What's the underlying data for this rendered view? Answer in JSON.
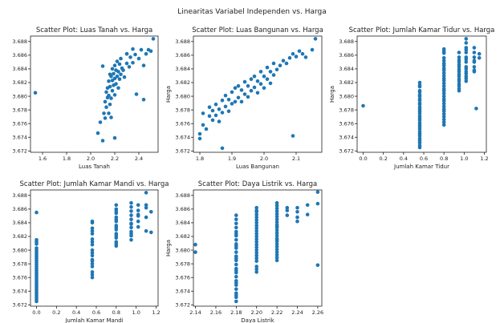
{
  "figure": {
    "suptitle": "Linearitas Variabel Independen vs. Harga",
    "marker_color": "#1f77b4"
  },
  "chart_data": [
    {
      "type": "scatter",
      "title": "Scatter Plot: Luas Tanah vs. Harga",
      "xlabel": "Luas Tanah",
      "ylabel": "",
      "xlim": [
        1.5,
        2.56
      ],
      "ylim": [
        3.6718,
        3.6888
      ],
      "xticks": [
        1.6,
        1.8,
        2.0,
        2.2,
        2.4
      ],
      "xtick_labels": [
        "1.6",
        "1.8",
        "2.0",
        "2.2",
        "2.4"
      ],
      "yticks": [
        3.672,
        3.674,
        3.676,
        3.678,
        3.68,
        3.682,
        3.684,
        3.686,
        3.688
      ],
      "ytick_labels": [
        "3.672",
        "3.674",
        "3.676",
        "3.678",
        "3.680",
        "3.682",
        "3.684",
        "3.686",
        "3.688"
      ],
      "x": [
        1.54,
        2.06,
        2.08,
        2.1,
        2.11,
        2.12,
        2.12,
        2.13,
        2.13,
        2.14,
        2.14,
        2.15,
        2.15,
        2.15,
        2.16,
        2.16,
        2.16,
        2.17,
        2.17,
        2.18,
        2.18,
        2.18,
        2.19,
        2.19,
        2.2,
        2.2,
        2.2,
        2.21,
        2.21,
        2.22,
        2.22,
        2.23,
        2.23,
        2.24,
        2.24,
        2.25,
        2.25,
        2.26,
        2.27,
        2.28,
        2.3,
        2.3,
        2.32,
        2.33,
        2.35,
        2.37,
        2.38,
        2.4,
        2.42,
        2.44,
        2.46,
        2.48,
        2.5,
        2.52,
        2.2,
        2.3,
        2.44,
        2.17,
        2.1,
        2.35
      ],
      "y": [
        3.6805,
        3.6746,
        3.6762,
        3.6735,
        3.6775,
        3.6792,
        3.6768,
        3.6806,
        3.6784,
        3.6798,
        3.6812,
        3.6775,
        3.6801,
        3.6822,
        3.6788,
        3.6814,
        3.6832,
        3.6797,
        3.6829,
        3.6808,
        3.6823,
        3.684,
        3.6816,
        3.6833,
        3.6802,
        3.6826,
        3.6845,
        3.6818,
        3.6838,
        3.6829,
        3.6851,
        3.6812,
        3.6836,
        3.6825,
        3.6847,
        3.6832,
        3.6855,
        3.6841,
        3.6838,
        3.6828,
        3.6848,
        3.6862,
        3.6843,
        3.6857,
        3.6849,
        3.6861,
        3.6803,
        3.6855,
        3.6868,
        3.6845,
        3.6862,
        3.6868,
        3.6866,
        3.6884,
        3.6739,
        3.6862,
        3.6795,
        3.6769,
        3.6844,
        3.6869
      ]
    },
    {
      "type": "scatter",
      "title": "Scatter Plot: Luas Bangunan vs. Harga",
      "xlabel": "Luas Bangunan",
      "ylabel": "Harga",
      "xlim": [
        1.78,
        2.18
      ],
      "ylim": [
        3.6718,
        3.6888
      ],
      "xticks": [
        1.8,
        1.9,
        2.0,
        2.1
      ],
      "xtick_labels": [
        "1.8",
        "1.9",
        "2.0",
        "2.1"
      ],
      "yticks": [
        3.672,
        3.674,
        3.676,
        3.678,
        3.68,
        3.682,
        3.684,
        3.686,
        3.688
      ],
      "ytick_labels": [
        "3.672",
        "3.674",
        "3.676",
        "3.678",
        "3.680",
        "3.682",
        "3.684",
        "3.686",
        "3.688"
      ],
      "x": [
        1.8,
        1.81,
        1.81,
        1.82,
        1.83,
        1.83,
        1.84,
        1.84,
        1.85,
        1.85,
        1.86,
        1.86,
        1.87,
        1.87,
        1.88,
        1.88,
        1.89,
        1.89,
        1.9,
        1.9,
        1.91,
        1.91,
        1.92,
        1.92,
        1.93,
        1.93,
        1.94,
        1.94,
        1.95,
        1.95,
        1.96,
        1.96,
        1.97,
        1.97,
        1.98,
        1.98,
        1.99,
        1.99,
        2.0,
        2.0,
        2.01,
        2.01,
        2.02,
        2.02,
        2.03,
        2.03,
        2.04,
        2.05,
        2.06,
        2.07,
        2.08,
        2.09,
        2.1,
        2.11,
        2.12,
        2.13,
        1.87,
        2.09,
        1.8,
        2.16,
        2.15
      ],
      "y": [
        3.6745,
        3.6758,
        3.6775,
        3.6752,
        3.6771,
        3.6784,
        3.6765,
        3.6779,
        3.6772,
        3.6788,
        3.6763,
        3.6781,
        3.6776,
        3.6794,
        3.6785,
        3.6801,
        3.6778,
        3.6795,
        3.6789,
        3.6806,
        3.6792,
        3.6812,
        3.6798,
        3.6815,
        3.6792,
        3.6809,
        3.6803,
        3.6821,
        3.6799,
        3.6815,
        3.6808,
        3.6825,
        3.6813,
        3.6829,
        3.6805,
        3.6822,
        3.6818,
        3.6836,
        3.6812,
        3.6829,
        3.6825,
        3.6842,
        3.6819,
        3.6836,
        3.6831,
        3.6848,
        3.6839,
        3.6845,
        3.6852,
        3.6848,
        3.6856,
        3.6862,
        3.6858,
        3.6866,
        3.6862,
        3.6857,
        3.6724,
        3.6742,
        3.6738,
        3.6884,
        3.6868
      ]
    },
    {
      "type": "scatter",
      "title": "Scatter Plot: Jumlah Kamar Tidur vs. Harga",
      "xlabel": "Jumlah Kamar Tidur",
      "ylabel": "Harga",
      "xlim": [
        -0.06,
        1.22
      ],
      "ylim": [
        3.6718,
        3.6888
      ],
      "xticks": [
        0.0,
        0.2,
        0.4,
        0.6,
        0.8,
        1.0,
        1.2
      ],
      "xtick_labels": [
        "0.0",
        "0.2",
        "0.4",
        "0.6",
        "0.8",
        "1.0",
        "1.2"
      ],
      "yticks": [
        3.672,
        3.674,
        3.676,
        3.678,
        3.68,
        3.682,
        3.684,
        3.686,
        3.688
      ],
      "ytick_labels": [
        "3.672",
        "3.674",
        "3.676",
        "3.678",
        "3.680",
        "3.682",
        "3.684",
        "3.686",
        "3.688"
      ],
      "x": [
        0.0,
        0.56,
        0.56,
        0.56,
        0.56,
        0.56,
        0.56,
        0.56,
        0.56,
        0.56,
        0.56,
        0.56,
        0.56,
        0.56,
        0.56,
        0.56,
        0.56,
        0.56,
        0.56,
        0.56,
        0.56,
        0.56,
        0.56,
        0.56,
        0.56,
        0.56,
        0.56,
        0.56,
        0.56,
        0.56,
        0.56,
        0.8,
        0.8,
        0.8,
        0.8,
        0.8,
        0.8,
        0.8,
        0.8,
        0.8,
        0.8,
        0.8,
        0.8,
        0.8,
        0.8,
        0.8,
        0.8,
        0.8,
        0.8,
        0.8,
        0.8,
        0.8,
        0.8,
        0.8,
        0.8,
        0.8,
        0.8,
        0.8,
        0.8,
        0.8,
        0.8,
        0.95,
        0.95,
        0.95,
        0.95,
        0.95,
        0.95,
        0.95,
        0.95,
        0.95,
        0.95,
        0.95,
        0.95,
        0.95,
        0.95,
        0.95,
        0.95,
        1.02,
        1.02,
        1.02,
        1.02,
        1.02,
        1.02,
        1.02,
        1.02,
        1.02,
        1.02,
        1.02,
        1.02,
        1.02,
        1.02,
        1.02,
        1.1,
        1.1,
        1.1,
        1.1,
        1.1,
        1.1,
        1.1,
        1.1,
        1.12,
        1.15,
        1.15
      ],
      "y": [
        3.6786,
        3.6725,
        3.6732,
        3.6738,
        3.6745,
        3.6752,
        3.6758,
        3.6765,
        3.6771,
        3.6778,
        3.6784,
        3.679,
        3.6796,
        3.6802,
        3.6808,
        3.6814,
        3.682,
        3.6728,
        3.6742,
        3.6755,
        3.6768,
        3.6781,
        3.6794,
        3.6806,
        3.6816,
        3.6735,
        3.6748,
        3.6761,
        3.6775,
        3.6788,
        3.68,
        3.6758,
        3.6766,
        3.6774,
        3.6781,
        3.6789,
        3.6796,
        3.6804,
        3.6811,
        3.6819,
        3.6826,
        3.6834,
        3.6841,
        3.6848,
        3.6856,
        3.6863,
        3.6869,
        3.6762,
        3.6778,
        3.6793,
        3.6808,
        3.6823,
        3.6838,
        3.6852,
        3.6866,
        3.677,
        3.6785,
        3.68,
        3.6815,
        3.683,
        3.6845,
        3.6808,
        3.6815,
        3.6822,
        3.6829,
        3.6836,
        3.6843,
        3.685,
        3.6857,
        3.6864,
        3.6811,
        3.6825,
        3.6839,
        3.6853,
        3.6818,
        3.6832,
        3.6846,
        3.6822,
        3.6829,
        3.6836,
        3.6843,
        3.685,
        3.6857,
        3.6864,
        3.6871,
        3.6878,
        3.6884,
        3.6826,
        3.684,
        3.6854,
        3.6868,
        3.6833,
        3.6836,
        3.6843,
        3.685,
        3.6857,
        3.6864,
        3.6871,
        3.6838,
        3.6852,
        3.6782,
        3.6862,
        3.6856
      ]
    },
    {
      "type": "scatter",
      "title": "Scatter Plot: Jumlah Kamar Mandi vs. Harga",
      "xlabel": "Jumlah Kamar Mandi",
      "ylabel": "",
      "xlim": [
        -0.06,
        1.22
      ],
      "ylim": [
        3.6718,
        3.6888
      ],
      "xticks": [
        0.0,
        0.2,
        0.4,
        0.6,
        0.8,
        1.0,
        1.2
      ],
      "xtick_labels": [
        "0.0",
        "0.2",
        "0.4",
        "0.6",
        "0.8",
        "1.0",
        "1.2"
      ],
      "yticks": [
        3.672,
        3.674,
        3.676,
        3.678,
        3.68,
        3.682,
        3.684,
        3.686,
        3.688
      ],
      "ytick_labels": [
        "3.672",
        "3.674",
        "3.676",
        "3.678",
        "3.680",
        "3.682",
        "3.684",
        "3.686",
        "3.688"
      ],
      "x": [
        0.0,
        0.0,
        0.0,
        0.0,
        0.0,
        0.0,
        0.0,
        0.0,
        0.0,
        0.0,
        0.0,
        0.0,
        0.0,
        0.0,
        0.0,
        0.0,
        0.0,
        0.0,
        0.0,
        0.0,
        0.0,
        0.0,
        0.0,
        0.0,
        0.0,
        0.0,
        0.0,
        0.0,
        0.0,
        0.0,
        0.0,
        0.56,
        0.56,
        0.56,
        0.56,
        0.56,
        0.56,
        0.56,
        0.56,
        0.56,
        0.56,
        0.56,
        0.56,
        0.56,
        0.56,
        0.56,
        0.56,
        0.56,
        0.56,
        0.8,
        0.8,
        0.8,
        0.8,
        0.8,
        0.8,
        0.8,
        0.8,
        0.8,
        0.8,
        0.8,
        0.8,
        0.8,
        0.8,
        0.8,
        0.8,
        0.95,
        0.95,
        0.95,
        0.95,
        0.95,
        0.95,
        0.95,
        0.95,
        0.95,
        0.95,
        0.95,
        0.95,
        1.02,
        1.02,
        1.02,
        1.02,
        1.02,
        1.02,
        1.1,
        1.1,
        1.1,
        1.1,
        1.1,
        1.15,
        1.15
      ],
      "y": [
        3.6725,
        3.6731,
        3.6737,
        3.6743,
        3.6749,
        3.6755,
        3.6761,
        3.6767,
        3.6773,
        3.6779,
        3.6785,
        3.6791,
        3.6797,
        3.6803,
        3.6809,
        3.6815,
        3.6728,
        3.674,
        3.6752,
        3.6764,
        3.6776,
        3.6788,
        3.68,
        3.6812,
        3.6734,
        3.6746,
        3.6758,
        3.677,
        3.6782,
        3.6794,
        3.6855,
        3.676,
        3.6768,
        3.6776,
        3.6784,
        3.6792,
        3.68,
        3.6808,
        3.6816,
        3.6824,
        3.6832,
        3.684,
        3.6764,
        3.678,
        3.6796,
        3.6812,
        3.6828,
        3.6842,
        3.6786,
        3.6806,
        3.6812,
        3.6818,
        3.6824,
        3.683,
        3.6836,
        3.6842,
        3.6848,
        3.6854,
        3.686,
        3.6866,
        3.6809,
        3.6821,
        3.6833,
        3.6845,
        3.6857,
        3.6815,
        3.6821,
        3.6827,
        3.6833,
        3.6839,
        3.6845,
        3.6851,
        3.6857,
        3.6863,
        3.6869,
        3.6824,
        3.6838,
        3.6852,
        3.6866,
        3.6834,
        3.6842,
        3.685,
        3.6858,
        3.6866,
        3.6884,
        3.6828,
        3.6848,
        3.6862,
        3.6826,
        3.6856
      ]
    },
    {
      "type": "scatter",
      "title": "Scatter Plot: Daya Listrik vs. Harga",
      "xlabel": "Daya Listrik",
      "ylabel": "Harga",
      "xlim": [
        2.138,
        2.264
      ],
      "ylim": [
        3.6718,
        3.6888
      ],
      "xticks": [
        2.14,
        2.16,
        2.18,
        2.2,
        2.22,
        2.24,
        2.26
      ],
      "xtick_labels": [
        "2.14",
        "2.16",
        "2.18",
        "2.20",
        "2.22",
        "2.24",
        "2.26"
      ],
      "yticks": [
        3.672,
        3.674,
        3.676,
        3.678,
        3.68,
        3.682,
        3.684,
        3.686,
        3.688
      ],
      "ytick_labels": [
        "3.672",
        "3.674",
        "3.676",
        "3.678",
        "3.680",
        "3.682",
        "3.684",
        "3.686",
        "3.688"
      ],
      "x": [
        2.14,
        2.14,
        2.18,
        2.18,
        2.18,
        2.18,
        2.18,
        2.18,
        2.18,
        2.18,
        2.18,
        2.18,
        2.18,
        2.18,
        2.18,
        2.18,
        2.18,
        2.18,
        2.18,
        2.18,
        2.18,
        2.18,
        2.18,
        2.18,
        2.18,
        2.18,
        2.18,
        2.18,
        2.18,
        2.18,
        2.2,
        2.2,
        2.2,
        2.2,
        2.2,
        2.2,
        2.2,
        2.2,
        2.2,
        2.2,
        2.2,
        2.2,
        2.2,
        2.2,
        2.2,
        2.2,
        2.2,
        2.2,
        2.2,
        2.2,
        2.2,
        2.2,
        2.2,
        2.2,
        2.22,
        2.22,
        2.22,
        2.22,
        2.22,
        2.22,
        2.22,
        2.22,
        2.22,
        2.22,
        2.22,
        2.22,
        2.22,
        2.22,
        2.22,
        2.22,
        2.22,
        2.22,
        2.22,
        2.22,
        2.22,
        2.22,
        2.22,
        2.22,
        2.24,
        2.24,
        2.24,
        2.24,
        2.25,
        2.25,
        2.26,
        2.26,
        2.26,
        2.23,
        2.23,
        2.23
      ],
      "y": [
        3.6808,
        3.6797,
        3.6725,
        3.6731,
        3.6737,
        3.6743,
        3.6749,
        3.6755,
        3.6761,
        3.6767,
        3.6773,
        3.6779,
        3.6785,
        3.6791,
        3.6797,
        3.6803,
        3.6809,
        3.6815,
        3.6821,
        3.6827,
        3.6833,
        3.6839,
        3.6845,
        3.6851,
        3.6734,
        3.6752,
        3.677,
        3.6788,
        3.6806,
        3.6824,
        3.6768,
        3.6776,
        3.6784,
        3.6792,
        3.68,
        3.6808,
        3.6816,
        3.6824,
        3.6832,
        3.684,
        3.6848,
        3.6856,
        3.6862,
        3.6772,
        3.6788,
        3.6804,
        3.682,
        3.6836,
        3.6852,
        3.6796,
        3.6812,
        3.6828,
        3.6844,
        3.6858,
        3.6785,
        3.6793,
        3.6801,
        3.6809,
        3.6817,
        3.6825,
        3.6833,
        3.6841,
        3.6849,
        3.6857,
        3.6865,
        3.6789,
        3.6805,
        3.6821,
        3.6837,
        3.6853,
        3.6869,
        3.6797,
        3.6813,
        3.6829,
        3.6845,
        3.6861,
        3.6815,
        3.6835,
        3.6862,
        3.6856,
        3.6848,
        3.6842,
        3.6866,
        3.6852,
        3.6885,
        3.6868,
        3.6778,
        3.6862,
        3.6858,
        3.6851
      ]
    }
  ]
}
